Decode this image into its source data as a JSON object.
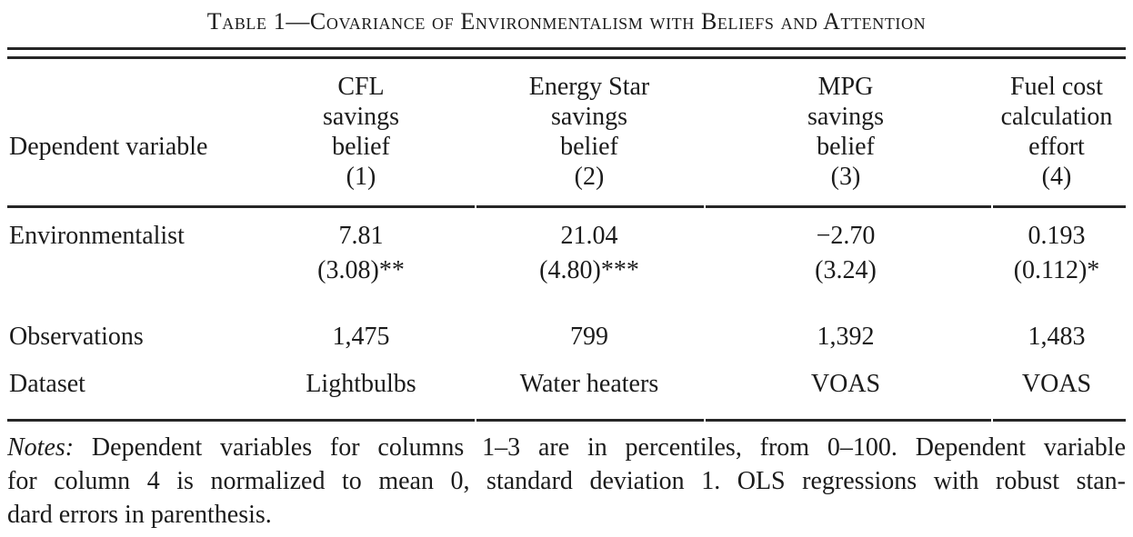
{
  "title": "Table 1—Covariance of Environmentalism with Beliefs and Attention",
  "table": {
    "row_label_header": "Dependent variable",
    "columns": [
      {
        "lines": [
          "CFL",
          "savings",
          "belief"
        ],
        "number": "(1)"
      },
      {
        "lines": [
          "Energy Star",
          "savings",
          "belief"
        ],
        "number": "(2)"
      },
      {
        "lines": [
          "MPG",
          "savings",
          "belief"
        ],
        "number": "(3)"
      },
      {
        "lines": [
          "Fuel cost",
          "calculation",
          "effort"
        ],
        "number": "(4)"
      }
    ],
    "environmentalist": {
      "label": "Environmentalist",
      "coefficients": [
        "7.81",
        "21.04",
        "−2.70",
        "0.193"
      ],
      "std_errors": [
        "(3.08)**",
        "(4.80)***",
        "(3.24)",
        "(0.112)*"
      ]
    },
    "observations": {
      "label": "Observations",
      "values": [
        "1,475",
        "799",
        "1,392",
        "1,483"
      ]
    },
    "dataset": {
      "label": "Dataset",
      "values": [
        "Lightbulbs",
        "Water heaters",
        "VOAS",
        "VOAS"
      ]
    }
  },
  "notes": {
    "label": "Notes:",
    "line1_rest": " Dependent variables for columns 1–3 are in percentiles, from 0–100. Dependent variable",
    "line2": "for column 4 is normalized to mean 0, standard deviation 1. OLS regressions with robust stan-",
    "line3": "dard errors in parenthesis."
  }
}
